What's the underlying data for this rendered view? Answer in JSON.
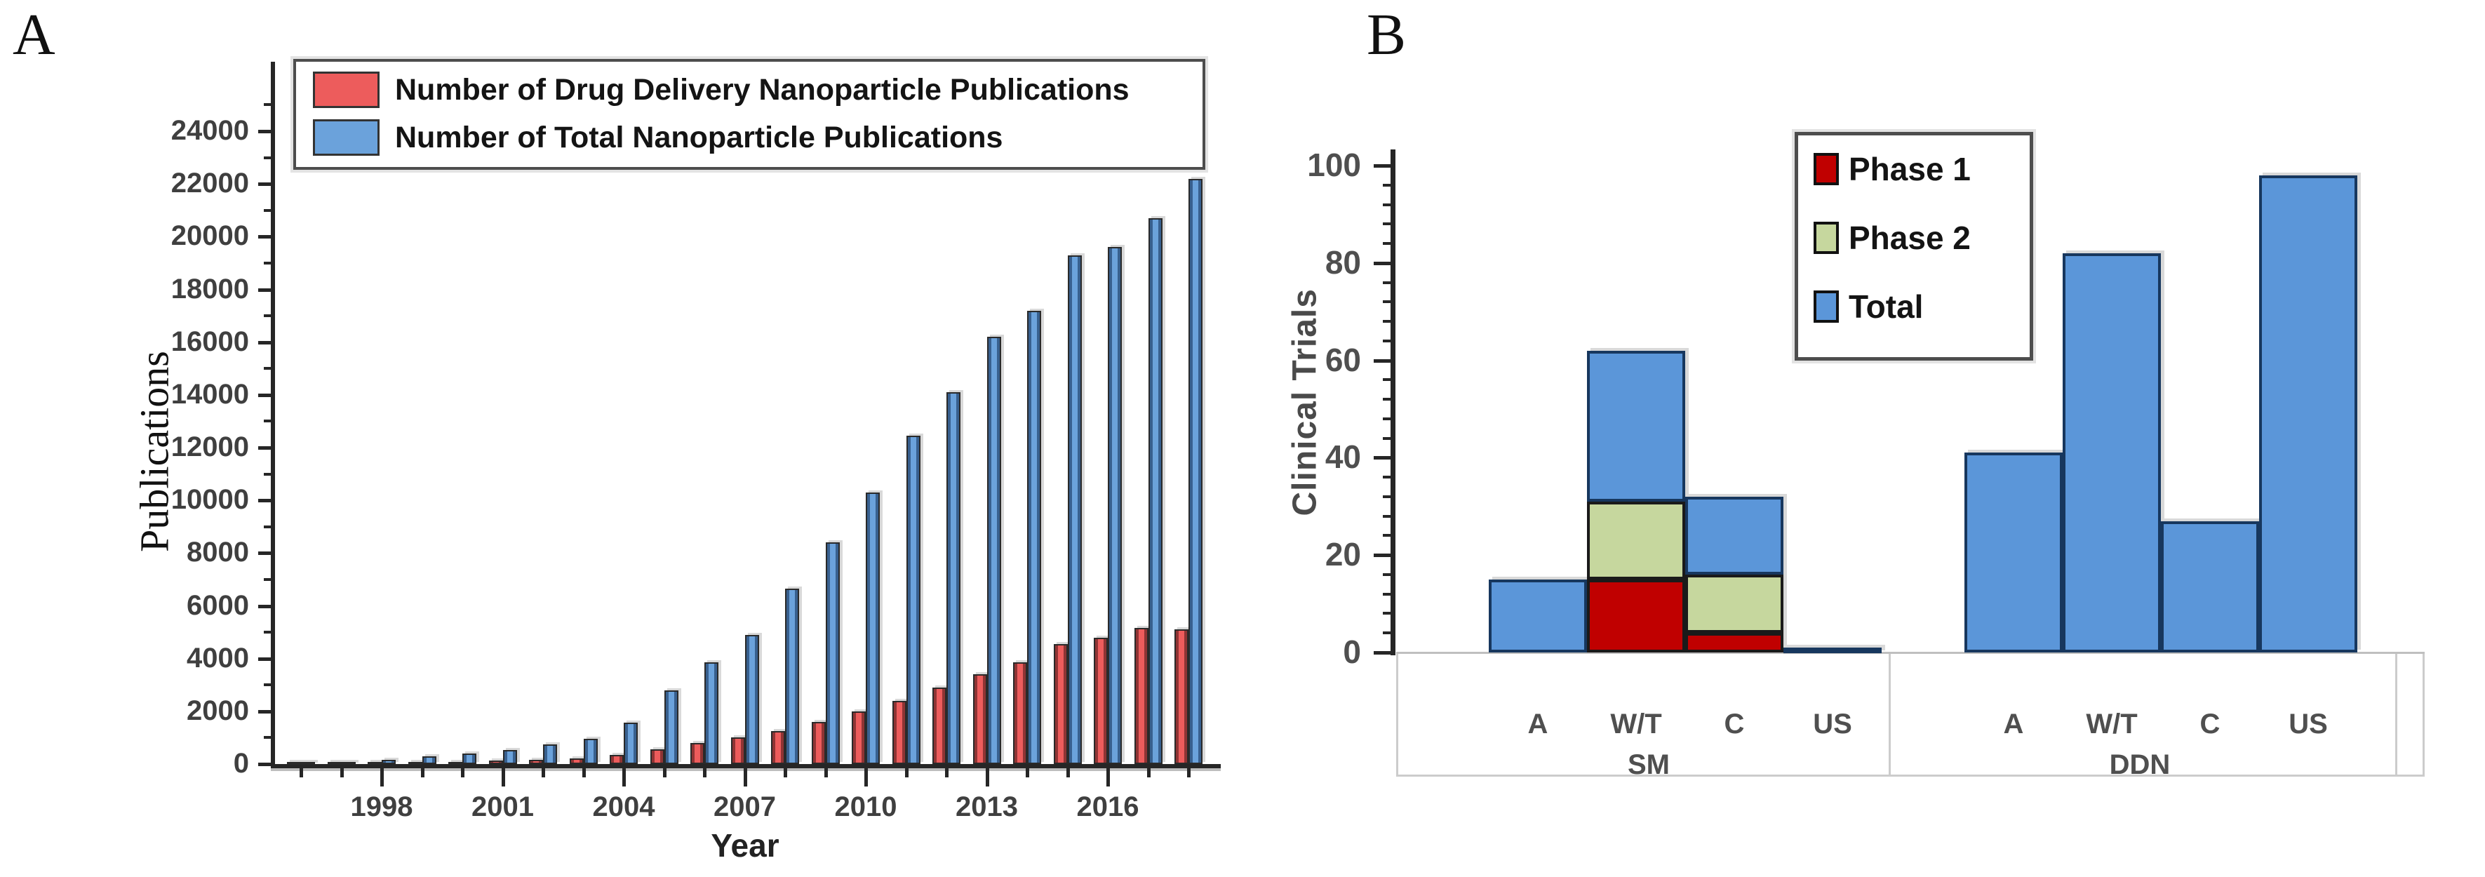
{
  "panels": {
    "a": {
      "label": "A",
      "y_axis_title": "Publications",
      "x_axis_title": "Year"
    },
    "b": {
      "label": "B",
      "y_axis_title": "Clinical Trials"
    }
  },
  "colors": {
    "panel_a_red": "#ED5C5C",
    "panel_a_red_edge": "#8F3434",
    "panel_a_blue": "#6BA2DB",
    "panel_a_blue_edge": "#38608F",
    "panel_b_blue": "#5B96D9",
    "panel_b_blue_edge": "#17375E",
    "phase1_red": "#C00000",
    "phase2_green": "#C6D79E",
    "axis": "#262626",
    "table_gray": "#CCCCCC"
  },
  "chart_data": [
    {
      "id": "A",
      "type": "bar",
      "xlabel": "Year",
      "ylabel": "Publications",
      "ylim": [
        0,
        24000
      ],
      "ytick_step": 2000,
      "ytick_minor_step": 1000,
      "grid": false,
      "legend_position": "top-left-inside",
      "x": [
        1996,
        1997,
        1998,
        1999,
        2000,
        2001,
        2002,
        2003,
        2004,
        2005,
        2006,
        2007,
        2008,
        2009,
        2010,
        2011,
        2012,
        2013,
        2014,
        2015,
        2016,
        2017,
        2018
      ],
      "xticks_labeled": [
        1998,
        2001,
        2004,
        2007,
        2010,
        2013,
        2016
      ],
      "series": [
        {
          "name": "Number of Drug Delivery Nanoparticle Publications",
          "color": "#ED5C5C",
          "values": [
            10,
            20,
            35,
            55,
            80,
            120,
            160,
            220,
            350,
            550,
            800,
            1000,
            1250,
            1600,
            2000,
            2400,
            2900,
            3400,
            3850,
            4550,
            4800,
            5150,
            5100
          ]
        },
        {
          "name": "Number of Total Nanoparticle Publications",
          "color": "#6BA2DB",
          "values": [
            50,
            90,
            170,
            300,
            390,
            520,
            750,
            960,
            1580,
            2800,
            3850,
            4900,
            6650,
            8400,
            10300,
            12450,
            14100,
            16200,
            17200,
            19300,
            19600,
            20700,
            22200
          ]
        }
      ]
    },
    {
      "id": "B",
      "type": "stacked-bar",
      "ylabel": "Clinical Trials",
      "ylim": [
        0,
        100
      ],
      "ytick_step": 20,
      "ytick_minor_step": 4,
      "grid": false,
      "legend_position": "top-center-inside",
      "legend": [
        {
          "name": "Phase 1",
          "color": "#C00000"
        },
        {
          "name": "Phase 2",
          "color": "#C6D79E"
        },
        {
          "name": "Total",
          "color": "#5B96D9"
        }
      ],
      "groups": [
        {
          "label": "SM",
          "bars": [
            {
              "category": "A",
              "phase1": 0,
              "phase2": 0,
              "total": 15
            },
            {
              "category": "W/T",
              "phase1": 15,
              "phase2": 16,
              "total": 62
            },
            {
              "category": "C",
              "phase1": 4,
              "phase2": 12,
              "total": 32
            },
            {
              "category": "US",
              "phase1": 0,
              "phase2": 0,
              "total": 1
            }
          ]
        },
        {
          "label": "DDN",
          "bars": [
            {
              "category": "A",
              "phase1": 0,
              "phase2": 0,
              "total": 41
            },
            {
              "category": "W/T",
              "phase1": 0,
              "phase2": 0,
              "total": 82
            },
            {
              "category": "C",
              "phase1": 0,
              "phase2": 0,
              "total": 27
            },
            {
              "category": "US",
              "phase1": 0,
              "phase2": 0,
              "total": 98
            }
          ]
        }
      ]
    }
  ]
}
